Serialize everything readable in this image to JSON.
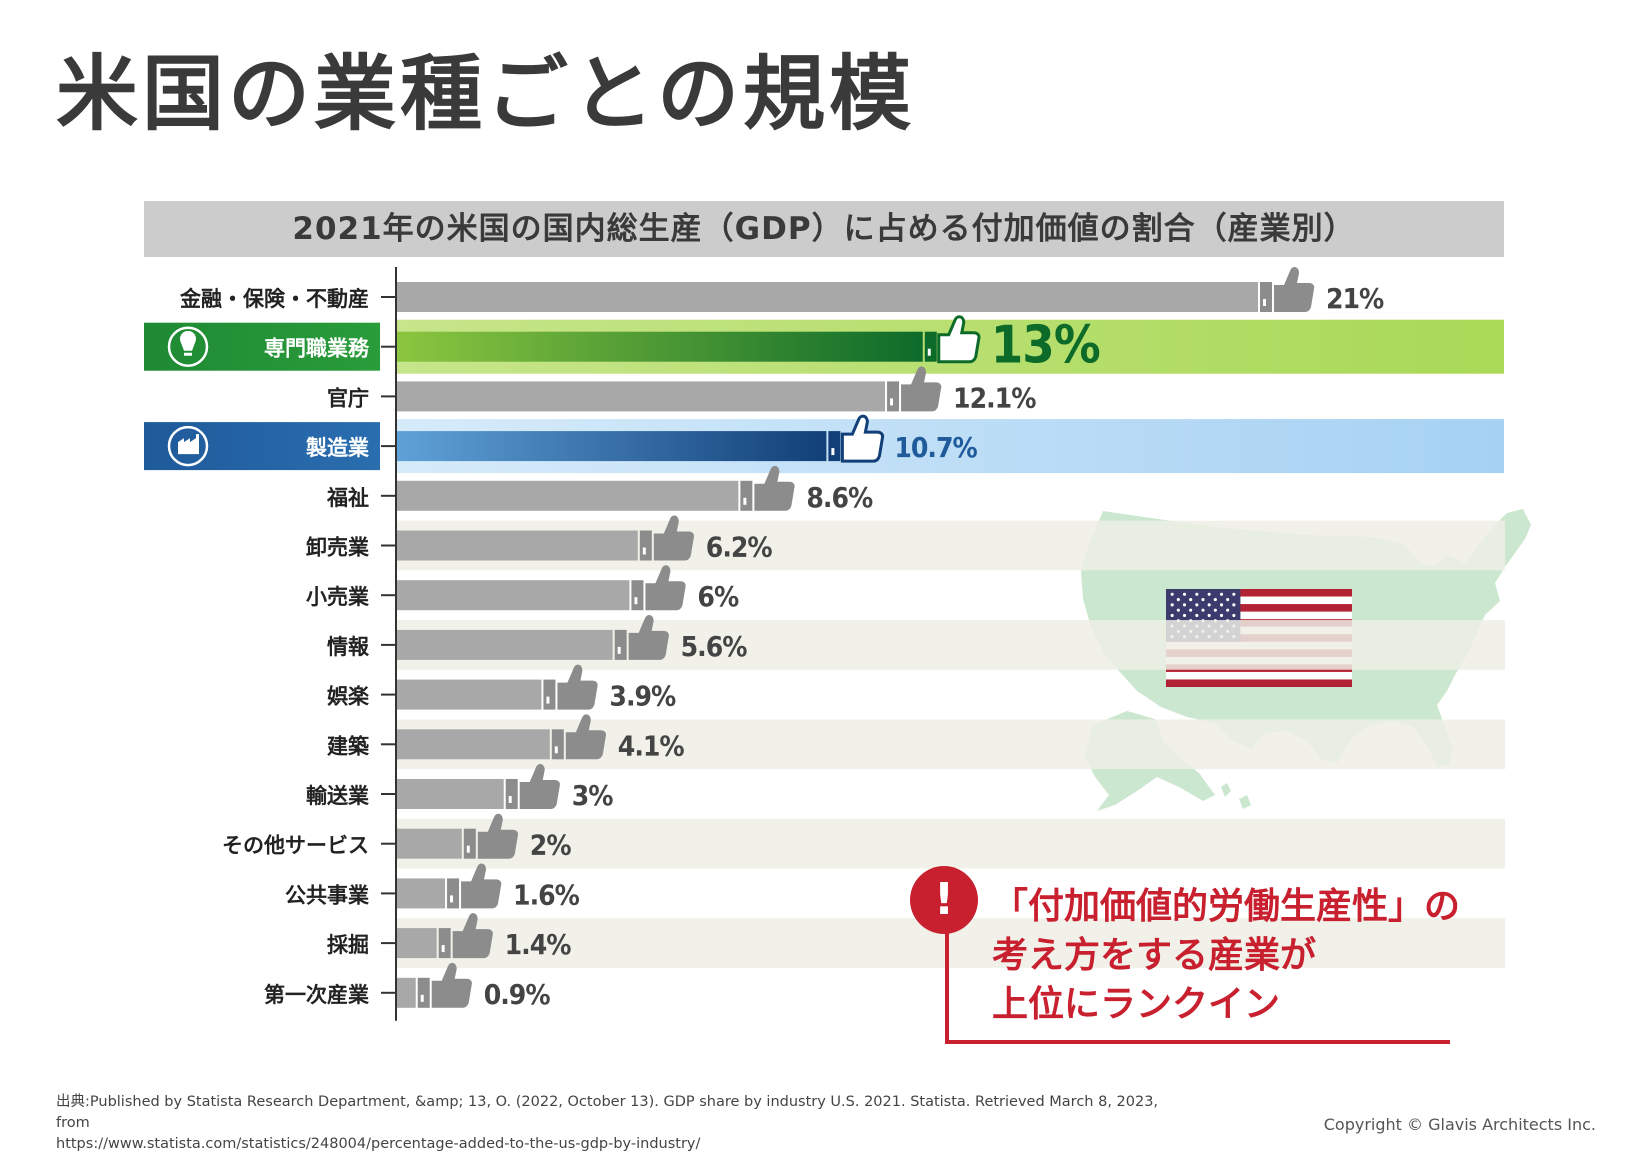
{
  "title": "米国の業種ごとの規模",
  "chart_data": {
    "type": "bar",
    "orientation": "horizontal",
    "title": "2021年の米国の国内総生産（GDP）に占める付加価値の割合（産業別）",
    "categories": [
      "金融・保険・不動産",
      "専門職業務",
      "官庁",
      "製造業",
      "福祉",
      "卸売業",
      "小売業",
      "情報",
      "娯楽",
      "建築",
      "輸送業",
      "その他サービス",
      "公共事業",
      "採掘",
      "第一次産業"
    ],
    "values": [
      21,
      13,
      12.1,
      10.7,
      8.6,
      6.2,
      6,
      5.6,
      3.9,
      4.1,
      3,
      2,
      1.6,
      1.4,
      0.9
    ],
    "value_labels": [
      "21%",
      "13%",
      "12.1%",
      "10.7%",
      "8.6%",
      "6.2%",
      "6%",
      "5.6%",
      "3.9%",
      "4.1%",
      "3%",
      "2%",
      "1.6%",
      "1.4%",
      "0.9%"
    ],
    "highlights": [
      {
        "category": "専門職業務",
        "color": "#1e8a34",
        "band": "#b6dd6a",
        "icon": "lightbulb-icon"
      },
      {
        "category": "製造業",
        "color": "#1f5a9a",
        "band": "#bcdcf4",
        "icon": "factory-icon"
      }
    ],
    "bar_color": "#a8a8a8",
    "xlim": [
      0,
      21
    ],
    "grid": false
  },
  "callout": {
    "badge": "!",
    "lines": [
      "「付加価値的労働生産性」の",
      "考え方をする産業が",
      "上位にランクイン"
    ]
  },
  "source": {
    "line1": "出典:Published by Statista Research Department, &amp; 13, O. (2022, October 13). GDP share by industry U.S. 2021. Statista. Retrieved March 8, 2023, from",
    "line2": "https://www.statista.com/statistics/248004/percentage-added-to-the-us-gdp-by-industry/"
  },
  "copyright": "Copyright © Glavis Architects Inc.",
  "colors": {
    "accent_red": "#c8202e",
    "map_green": "#c9e6cd",
    "stripe": "#efefe6"
  }
}
